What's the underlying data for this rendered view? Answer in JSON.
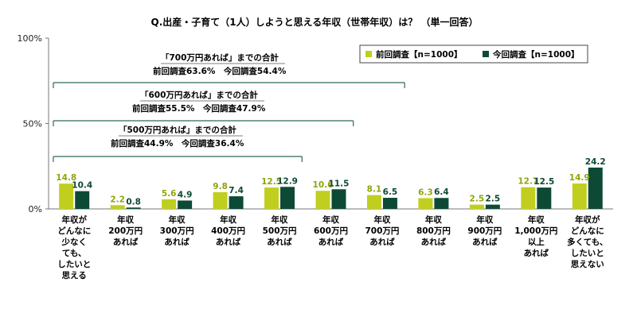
{
  "chart_data": {
    "type": "bar",
    "title": "Q.出産・子育て（1人）しようと思える年収（世帯年収）は？ （単一回答）",
    "ylim": [
      0,
      100
    ],
    "yticks": [
      "0%",
      "50%",
      "100%"
    ],
    "grid": false,
    "legend_position": "top-right",
    "categories": [
      "年収がどんなに少なくても、したいと思える",
      "年収200万円あれば",
      "年収300万円あれば",
      "年収400万円あれば",
      "年収500万円あれば",
      "年収600万円あれば",
      "年収700万円あれば",
      "年収800万円あれば",
      "年収900万円あれば",
      "年収1,000万円以上あれば",
      "年収がどんなに多くても、したいと思えない"
    ],
    "category_lines": [
      [
        "年収が",
        "どんなに",
        "少なく",
        "ても、",
        "したいと",
        "思える"
      ],
      [
        "年収",
        "200万円",
        "あれば"
      ],
      [
        "年収",
        "300万円",
        "あれば"
      ],
      [
        "年収",
        "400万円",
        "あれば"
      ],
      [
        "年収",
        "500万円",
        "あれば"
      ],
      [
        "年収",
        "600万円",
        "あれば"
      ],
      [
        "年収",
        "700万円",
        "あれば"
      ],
      [
        "年収",
        "800万円",
        "あれば"
      ],
      [
        "年収",
        "900万円",
        "あれば"
      ],
      [
        "年収",
        "1,000万円",
        "以上",
        "あれば"
      ],
      [
        "年収が",
        "どんなに",
        "多くても、",
        "したいと",
        "思えない"
      ]
    ],
    "series": [
      {
        "name": "前回調査【n=1000】",
        "color": "#c0cf1f",
        "labelColor": "#8fa50b",
        "values": [
          14.8,
          2.2,
          5.6,
          9.8,
          12.5,
          10.6,
          8.1,
          6.3,
          2.5,
          12.7,
          14.9
        ]
      },
      {
        "name": "今回調査【n=1000】",
        "color": "#0d4a35",
        "labelColor": "#0d4a35",
        "values": [
          10.4,
          0.8,
          4.9,
          7.4,
          12.9,
          11.5,
          6.5,
          6.4,
          2.5,
          12.5,
          24.2
        ]
      }
    ],
    "annotations": [
      {
        "head": "「700万円あれば」までの合計",
        "body": "前回調査63.6%　今回調査54.4%",
        "span_to_category": 6
      },
      {
        "head": "「600万円あれば」までの合計",
        "body": "前回調査55.5%　今回調査47.9%",
        "span_to_category": 5
      },
      {
        "head": "「500万円あれば」までの合計",
        "body": "前回調査44.9%　今回調査36.4%",
        "span_to_category": 4
      }
    ]
  }
}
